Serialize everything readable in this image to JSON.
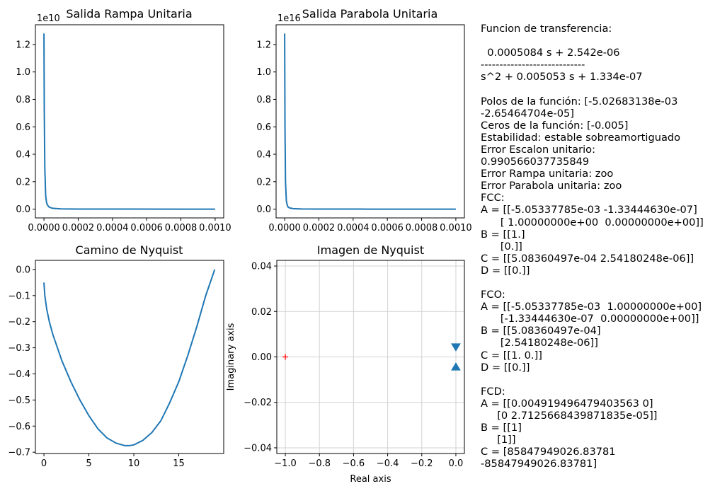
{
  "colors": {
    "line": "#1f77b4",
    "marker": "#ff0000",
    "grid": "#d3d3d3"
  },
  "chart_data": [
    {
      "id": "rampa",
      "type": "line",
      "title": "Salida Rampa Unitaria",
      "xlabel": "",
      "ylabel": "",
      "xlim": [
        -5e-05,
        0.00105
      ],
      "ylim": [
        -0.064,
        1.344
      ],
      "offset_text": "1e10",
      "xticks": [
        0,
        0.0002,
        0.0004,
        0.0006,
        0.0008,
        0.001
      ],
      "xticklabels": [
        "0.0000",
        "0.0002",
        "0.0004",
        "0.0006",
        "0.0008",
        "0.0010"
      ],
      "yticks": [
        0,
        0.2,
        0.4,
        0.6,
        0.8,
        1.0,
        1.2
      ],
      "yticklabels": [
        "0.0",
        "0.2",
        "0.4",
        "0.6",
        "0.8",
        "1.0",
        "1.2"
      ],
      "grid": false,
      "series": [
        {
          "x": [
            0,
            2e-06,
            5e-06,
            1e-05,
            1.5e-05,
            2e-05,
            3e-05,
            5e-05,
            0.0001,
            0.0002,
            0.0005,
            0.001
          ],
          "y": [
            1.28,
            0.7,
            0.3,
            0.1,
            0.05,
            0.03,
            0.015,
            0.006,
            0.002,
            0.0008,
            0.0002,
            0.0
          ]
        }
      ]
    },
    {
      "id": "parabola",
      "type": "line",
      "title": "Salida Parabola Unitaria",
      "xlabel": "",
      "ylabel": "",
      "xlim": [
        -5e-05,
        0.00105
      ],
      "ylim": [
        -0.064,
        1.344
      ],
      "offset_text": "1e16",
      "xticks": [
        0,
        0.0002,
        0.0004,
        0.0006,
        0.0008,
        0.001
      ],
      "xticklabels": [
        "0.0000",
        "0.0002",
        "0.0004",
        "0.0006",
        "0.0008",
        "0.0010"
      ],
      "yticks": [
        0,
        0.2,
        0.4,
        0.6,
        0.8,
        1.0,
        1.2
      ],
      "yticklabels": [
        "0.0",
        "0.2",
        "0.4",
        "0.6",
        "0.8",
        "1.0",
        "1.2"
      ],
      "grid": false,
      "series": [
        {
          "x": [
            0,
            2e-06,
            5e-06,
            1e-05,
            1.5e-05,
            2e-05,
            3e-05,
            5e-05,
            0.0001,
            0.0002,
            0.0005,
            0.001
          ],
          "y": [
            1.28,
            0.6,
            0.2,
            0.06,
            0.03,
            0.015,
            0.008,
            0.004,
            0.001,
            0.0005,
            0.0001,
            0.0
          ]
        }
      ]
    },
    {
      "id": "camino",
      "type": "line",
      "title": "Camino de Nyquist",
      "xlabel": "",
      "ylabel": "",
      "xlim": [
        -0.95,
        20.0
      ],
      "ylim": [
        -0.705,
        0.035
      ],
      "xticks": [
        0,
        5,
        10,
        15
      ],
      "xticklabels": [
        "0",
        "5",
        "10",
        "15"
      ],
      "yticks": [
        0,
        -0.1,
        -0.2,
        -0.3,
        -0.4,
        -0.5,
        -0.6,
        -0.7
      ],
      "yticklabels": [
        "0.0",
        "−0.1",
        "−0.2",
        "−0.3",
        "−0.4",
        "−0.5",
        "−0.6",
        "−0.7"
      ],
      "grid": false,
      "series": [
        {
          "x": [
            0,
            0.1,
            0.3,
            0.6,
            1.0,
            1.5,
            2.0,
            3.0,
            4.0,
            5.0,
            6.0,
            7.0,
            8.0,
            9.0,
            9.5,
            10.0,
            11.0,
            12.0,
            13.0,
            14.0,
            15.0,
            16.0,
            17.0,
            17.5,
            18.0,
            18.3,
            18.6,
            18.8,
            19.0
          ],
          "y": [
            -0.05,
            -0.1,
            -0.15,
            -0.2,
            -0.25,
            -0.3,
            -0.35,
            -0.43,
            -0.5,
            -0.56,
            -0.61,
            -0.645,
            -0.665,
            -0.675,
            -0.675,
            -0.672,
            -0.655,
            -0.625,
            -0.58,
            -0.51,
            -0.43,
            -0.33,
            -0.22,
            -0.16,
            -0.1,
            -0.07,
            -0.04,
            -0.02,
            0.0
          ]
        }
      ]
    },
    {
      "id": "imagen",
      "type": "scatter",
      "title": "Imagen de Nyquist",
      "xlabel": "Real axis",
      "ylabel": "Imaginary axis",
      "xlim": [
        -1.05,
        0.05
      ],
      "ylim": [
        -0.0425,
        0.0425
      ],
      "xticks": [
        -1.0,
        -0.8,
        -0.6,
        -0.4,
        -0.2,
        0.0
      ],
      "xticklabels": [
        "−1.0",
        "−0.8",
        "−0.6",
        "−0.4",
        "−0.2",
        "0.0"
      ],
      "yticks": [
        -0.04,
        -0.02,
        0.0,
        0.02,
        0.04
      ],
      "yticklabels": [
        "−0.04",
        "−0.02",
        "0.00",
        "0.02",
        "0.04"
      ],
      "grid": true,
      "critical_point": {
        "x": -1.0,
        "y": 0.0
      },
      "series": [
        {
          "name": "",
          "x": [
            0.0,
            0.0
          ],
          "y": [
            0.003,
            -0.003
          ]
        }
      ]
    }
  ],
  "info": {
    "lines": [
      "Funcion de transferencia:",
      "",
      "  0.0005084 s + 2.542e-06",
      "----------------------------",
      "s^2 + 0.005053 s + 1.334e-07",
      "",
      "Polos de la función: [-5.02683138e-03",
      "-2.65464704e-05]",
      "Ceros de la función: [-0.005]",
      "Estabilidad: estable sobreamortiguado",
      "Error Escalon unitario:",
      "0.990566037735849",
      "Error Rampa unitaria: zoo",
      "Error Parabola unitaria: zoo",
      "FCC:",
      "A = [[-5.05337785e-03 -1.33444630e-07]",
      "      [ 1.00000000e+00  0.00000000e+00]]",
      "B = [[1.]",
      "      [0.]]",
      "C = [[5.08360497e-04 2.54180248e-06]]",
      "D = [[0.]]",
      "",
      "FCO:",
      "A = [[-5.05337785e-03  1.00000000e+00]",
      "      [-1.33444630e-07  0.00000000e+00]]",
      "B = [[5.08360497e-04]",
      "      [2.54180248e-06]]",
      "C = [[1. 0.]]",
      "D = [[0.]]",
      "",
      "FCD:",
      "A = [[0.004919496479403563 0]",
      "     [0 2.7125668439871835e-05]]",
      "B = [[1]",
      "     [1]]",
      "C = [85847949026.83781",
      "-85847949026.83781]"
    ]
  }
}
